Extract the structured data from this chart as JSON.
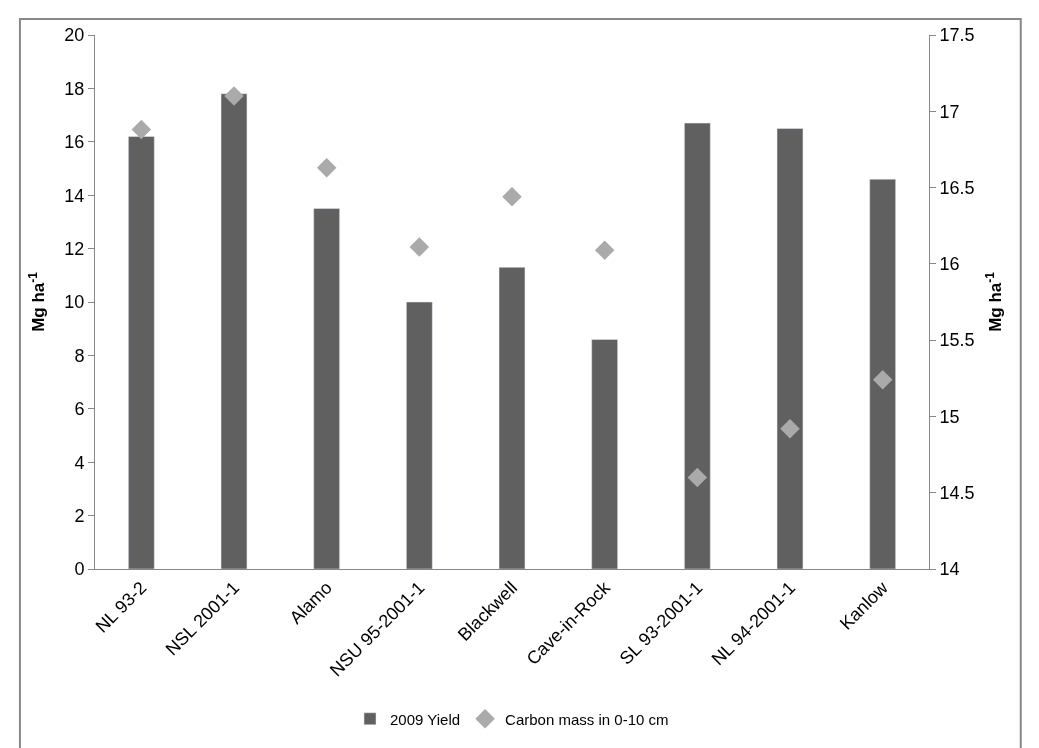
{
  "chart_data": {
    "type": "bar",
    "categories": [
      "NL 93-2",
      "NSL 2001-1",
      "Alamo",
      "NSU 95-2001-1",
      "Blackwell",
      "Cave-in-Rock",
      "SL 93-2001-1",
      "NL 94-2001-1",
      "Kanlow"
    ],
    "ylabel": "Mg ha$^{-1}$",
    "y2label": "Mg ha$^{-1}$",
    "series": [
      {
        "name": "2009 Yield",
        "color": "#606060",
        "values": [
          16.2,
          17.8,
          13.5,
          10.0,
          11.3,
          8.6,
          16.7,
          16.5,
          14.6
        ]
      },
      {
        "name": "Carbon mass in 0-10 cm",
        "type": "scatter",
        "axis": "y2",
        "marker": "diamond",
        "color": "#aaaaaa",
        "values": [
          16.88,
          17.1,
          16.63,
          16.11,
          16.44,
          16.09,
          14.6,
          14.92,
          15.24
        ]
      }
    ],
    "ylim": [
      0,
      20
    ],
    "yticks": [
      0,
      2,
      4,
      6,
      8,
      10,
      12,
      14,
      16,
      18,
      20
    ],
    "y2lim": [
      14,
      17.5
    ],
    "y2ticks": [
      14,
      {
        "value": 14.5,
        "label": "14.5"
      },
      15,
      {
        "value": 15.5,
        "label": "15.5"
      },
      16,
      {
        "value": 16.5,
        "label": "16.5"
      },
      17,
      {
        "value": 17.5,
        "label": "17.5"
      }
    ],
    "legend": "bottom"
  }
}
